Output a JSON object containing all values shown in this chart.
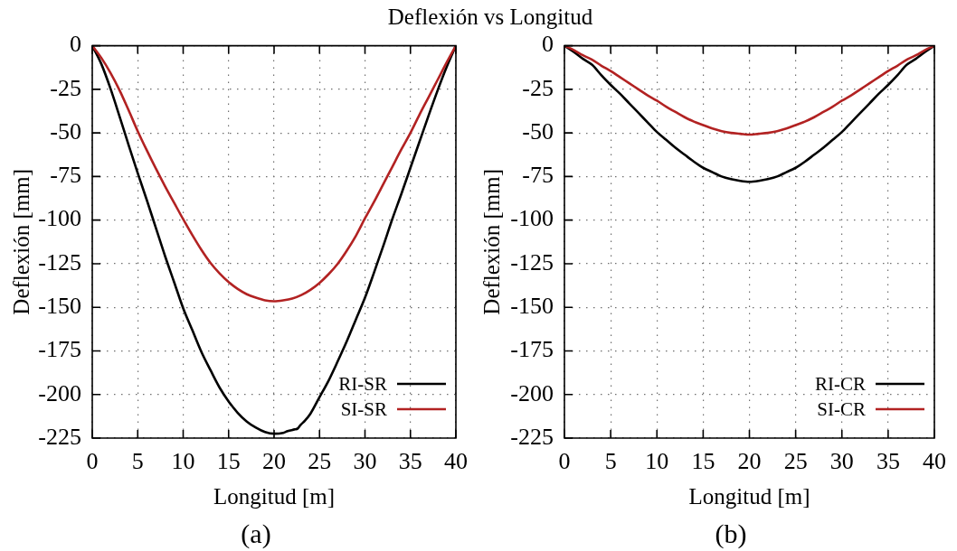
{
  "chart_data": [
    {
      "type": "line",
      "title": "Deflexión vs Longitud",
      "xlabel": "Longitud [m]",
      "ylabel": "Deflexión [mm]",
      "annotations": [
        "(a)"
      ],
      "xlim": [
        0,
        40
      ],
      "ylim": [
        -225,
        0
      ],
      "xticks": [
        0,
        5,
        10,
        15,
        20,
        25,
        30,
        35,
        40
      ],
      "yticks": [
        -225,
        -200,
        -175,
        -150,
        -125,
        -100,
        -75,
        -50,
        -25,
        0
      ],
      "grid": true,
      "legend": "bottom right",
      "x": [
        0,
        1,
        2,
        3,
        4,
        5,
        6,
        7,
        8,
        9,
        10,
        11,
        12,
        13,
        14,
        15,
        16,
        17,
        18,
        19,
        20,
        21,
        22,
        23,
        24,
        25,
        26,
        27,
        28,
        29,
        30,
        31,
        32,
        33,
        34,
        35,
        36,
        37,
        38,
        39,
        40
      ],
      "series": [
        {
          "name": "RI-SR",
          "color": "#000000",
          "x": [
            0,
            1,
            2,
            3,
            4,
            5,
            6,
            7,
            8,
            9,
            10,
            11,
            12,
            13,
            14,
            15,
            16,
            17,
            18,
            19,
            20,
            21,
            21.5,
            22.3,
            22.6,
            22.9,
            23.4,
            24,
            25,
            26,
            27,
            28,
            29,
            30,
            31,
            32,
            33,
            34,
            35,
            36,
            37,
            38,
            39,
            40
          ],
          "values": [
            0,
            -10.5,
            -24.5,
            -40.5,
            -57,
            -73,
            -88.5,
            -104.5,
            -120.5,
            -135.5,
            -150.5,
            -163,
            -175.5,
            -186,
            -196,
            -204,
            -210.5,
            -215.5,
            -219,
            -221.5,
            -222.5,
            -222,
            -221,
            -220,
            -219.5,
            -217.5,
            -215,
            -211,
            -201.5,
            -192,
            -181,
            -169.5,
            -157,
            -144.5,
            -130,
            -115,
            -99.5,
            -85,
            -70,
            -55,
            -40,
            -25.5,
            -12,
            0
          ]
        },
        {
          "name": "SI-SR",
          "color": "#b22222",
          "values": [
            0,
            -7,
            -15.5,
            -25.5,
            -37,
            -49,
            -60,
            -70.5,
            -80.5,
            -90,
            -99.5,
            -108.5,
            -117,
            -124.5,
            -130.5,
            -135.5,
            -139.5,
            -142.5,
            -144.5,
            -146,
            -146.5,
            -146,
            -145,
            -143,
            -140,
            -136,
            -131,
            -125,
            -117.5,
            -109,
            -99,
            -89.5,
            -79.5,
            -69.5,
            -59.5,
            -50,
            -39.5,
            -29.5,
            -19.5,
            -9.5,
            0
          ]
        }
      ]
    },
    {
      "type": "line",
      "xlabel": "Longitud [m]",
      "ylabel": "Deflexión [mm]",
      "annotations": [
        "(b)"
      ],
      "xlim": [
        0,
        40
      ],
      "ylim": [
        -225,
        0
      ],
      "xticks": [
        0,
        5,
        10,
        15,
        20,
        25,
        30,
        35,
        40
      ],
      "yticks": [
        -225,
        -200,
        -175,
        -150,
        -125,
        -100,
        -75,
        -50,
        -25,
        0
      ],
      "grid": true,
      "legend": "bottom right",
      "x": [
        0,
        1,
        2,
        3,
        4,
        5,
        6,
        7,
        8,
        9,
        10,
        11,
        12,
        13,
        14,
        15,
        16,
        17,
        18,
        19,
        20,
        21,
        22,
        23,
        24,
        25,
        26,
        27,
        28,
        29,
        30,
        31,
        32,
        33,
        34,
        35,
        36,
        37,
        38,
        39,
        40
      ],
      "series": [
        {
          "name": "RI-CR",
          "color": "#000000",
          "values": [
            0,
            -3.5,
            -7.5,
            -11,
            -17,
            -22.5,
            -27.5,
            -33,
            -38.5,
            -44,
            -49.5,
            -54,
            -58.5,
            -62.5,
            -66.5,
            -70,
            -72.5,
            -75,
            -76.5,
            -77.5,
            -78,
            -77.5,
            -76.5,
            -75,
            -72.5,
            -70,
            -66.5,
            -62.5,
            -58.5,
            -54,
            -49.5,
            -44,
            -38.5,
            -33,
            -27.5,
            -22.5,
            -17,
            -11,
            -7.5,
            -3.5,
            0
          ]
        },
        {
          "name": "SI-CR",
          "color": "#b22222",
          "values": [
            0,
            -2.5,
            -5.5,
            -8,
            -11.5,
            -14.5,
            -18,
            -21.5,
            -25,
            -28.5,
            -31.5,
            -35,
            -38,
            -41,
            -43.5,
            -45.5,
            -47.5,
            -49,
            -50,
            -50.5,
            -51,
            -50.5,
            -50,
            -49,
            -47.5,
            -45.5,
            -43.5,
            -41,
            -38,
            -35,
            -31.5,
            -28.5,
            -25,
            -21.5,
            -18,
            -14.5,
            -11.5,
            -8,
            -5.5,
            -2.5,
            0
          ]
        }
      ]
    }
  ]
}
